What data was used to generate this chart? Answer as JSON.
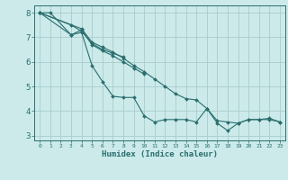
{
  "xlabel": "Humidex (Indice chaleur)",
  "bg_color": "#cceaea",
  "grid_color": "#aacccc",
  "line_color": "#2a6e6e",
  "xlim": [
    -0.5,
    23.5
  ],
  "ylim": [
    2.8,
    8.3
  ],
  "yticks": [
    3,
    4,
    5,
    6,
    7,
    8
  ],
  "xtick_labels": [
    "0",
    "1",
    "2",
    "3",
    "4",
    "5",
    "6",
    "7",
    "8",
    "9",
    "10",
    "11",
    "12",
    "13",
    "14",
    "15",
    "16",
    "17",
    "18",
    "19",
    "20",
    "21",
    "22",
    "23"
  ],
  "series": [
    {
      "x": [
        0,
        1,
        3,
        4,
        5,
        6,
        7,
        8,
        9,
        10,
        11,
        12,
        13,
        14,
        15,
        16,
        17,
        18,
        19,
        20,
        21,
        22,
        23
      ],
      "y": [
        8.0,
        8.0,
        7.1,
        7.2,
        5.85,
        5.2,
        4.6,
        4.55,
        4.55,
        3.8,
        3.55,
        3.65,
        3.65,
        3.65,
        3.55,
        4.1,
        3.5,
        3.2,
        3.5,
        3.65,
        3.65,
        3.65,
        3.55
      ]
    },
    {
      "x": [
        0,
        3,
        4,
        5,
        6,
        7,
        8
      ],
      "y": [
        8.0,
        7.5,
        7.25,
        6.75,
        6.5,
        6.35,
        6.2
      ]
    },
    {
      "x": [
        0,
        3,
        4,
        5,
        6,
        7,
        8,
        9,
        10
      ],
      "y": [
        8.0,
        7.1,
        7.3,
        6.7,
        6.45,
        6.25,
        6.0,
        5.75,
        5.5
      ]
    },
    {
      "x": [
        0,
        4,
        5,
        6,
        7,
        8,
        9,
        10,
        11,
        12,
        13,
        14,
        15,
        16,
        17,
        18,
        19,
        20,
        21,
        22,
        23
      ],
      "y": [
        8.0,
        7.35,
        6.8,
        6.6,
        6.4,
        6.15,
        5.85,
        5.6,
        5.3,
        5.0,
        4.7,
        4.5,
        4.45,
        4.1,
        3.6,
        3.55,
        3.5,
        3.65,
        3.65,
        3.7,
        3.55
      ]
    }
  ]
}
